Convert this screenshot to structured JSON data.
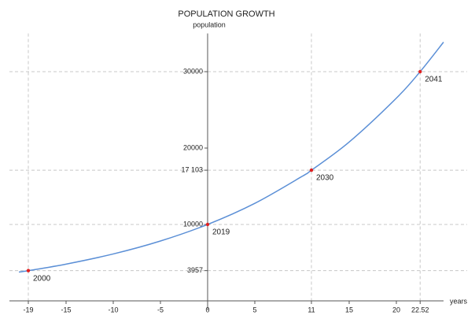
{
  "chart_data": {
    "type": "line",
    "title": "POPULATION GROWTH",
    "y_label": "population",
    "x_label": "years",
    "x": [
      -20,
      -19,
      -15,
      -10,
      -5,
      0,
      5,
      10,
      11,
      15,
      20,
      22.52,
      25
    ],
    "series": [
      {
        "name": "population",
        "color": "#5b8fd6",
        "values": [
          3769,
          3957,
          4810,
          6139,
          7835,
          10000,
          12763,
          16288,
          17103,
          20790,
          26532,
          30000,
          33863
        ]
      }
    ],
    "points": {
      "color": "#e02020",
      "x": [
        -19,
        0,
        11,
        22.52
      ],
      "values": [
        3957,
        10000,
        17103,
        30000
      ],
      "labels": [
        "2000",
        "2019",
        "2030",
        "2041"
      ]
    },
    "guides": true,
    "xlim": [
      -21,
      27.5
    ],
    "ylim": [
      0,
      35000
    ],
    "xticks": [
      -19,
      -15,
      -10,
      -5,
      0,
      5,
      11,
      15,
      20,
      22.52
    ],
    "yticks": [
      3957,
      10000,
      {
        "value": 17103,
        "label": "17 103"
      },
      20000,
      30000
    ]
  }
}
